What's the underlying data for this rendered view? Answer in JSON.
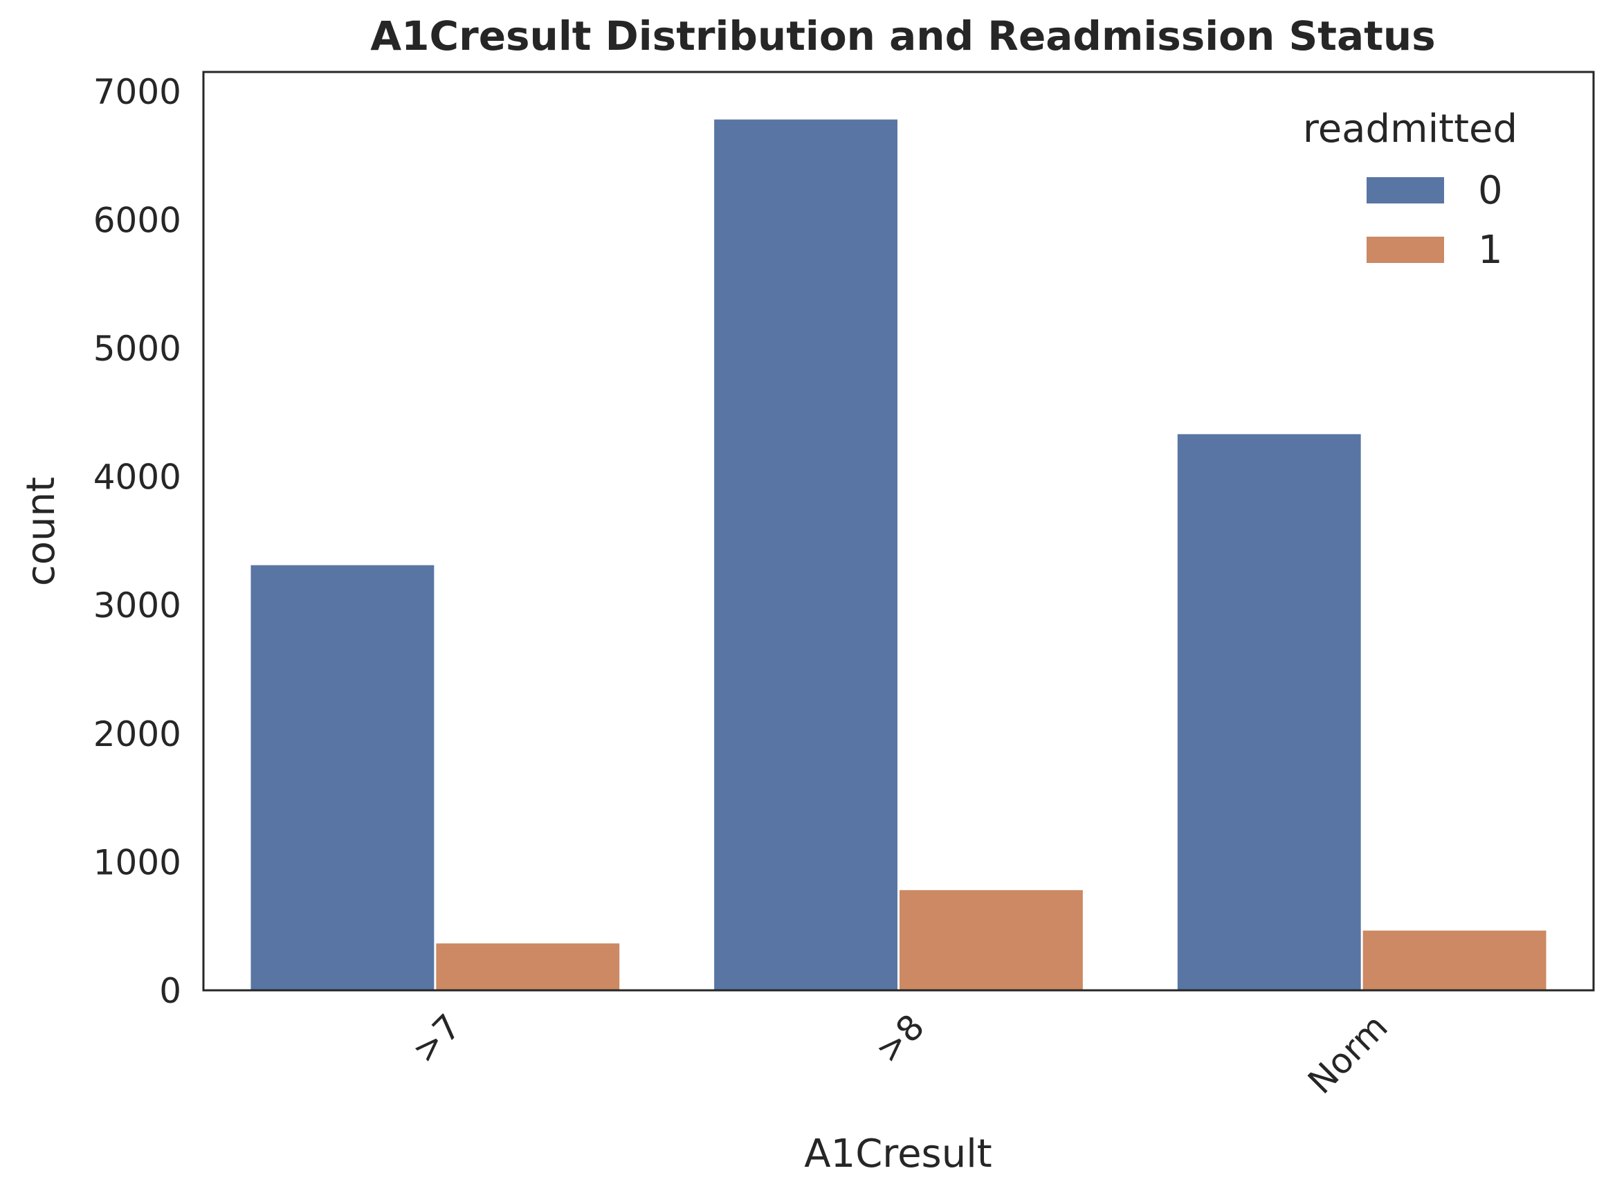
{
  "chart_data": {
    "type": "bar",
    "title": "A1Cresult Distribution and Readmission Status",
    "xlabel": "A1Cresult",
    "ylabel": "count",
    "categories": [
      ">7",
      ">8",
      "Norm"
    ],
    "series": [
      {
        "name": "0",
        "values": [
          3310,
          6780,
          4330
        ],
        "color": "#5875a4"
      },
      {
        "name": "1",
        "values": [
          365,
          780,
          465
        ],
        "color": "#cc8963"
      }
    ],
    "ylim": [
      0,
      7150
    ],
    "yticks": [
      0,
      1000,
      2000,
      3000,
      4000,
      5000,
      6000,
      7000
    ],
    "legend": {
      "title": "readmitted",
      "placement": "top-right"
    },
    "grid": false,
    "xtick_rotation_deg": 45
  }
}
